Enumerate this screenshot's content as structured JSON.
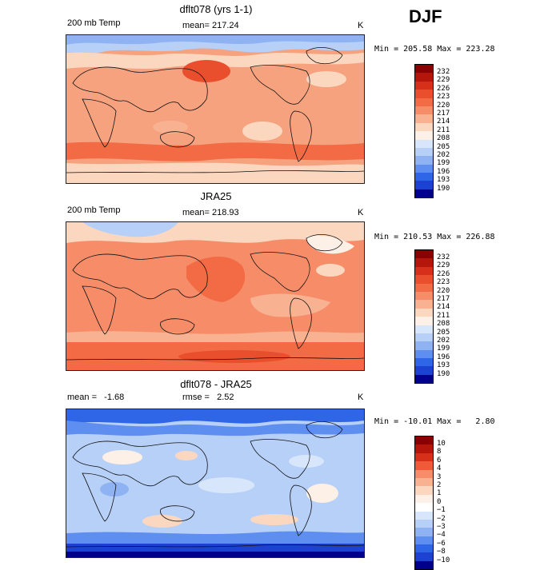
{
  "season": "DJF",
  "panels": [
    {
      "title": "dflt078 (yrs 1-1)",
      "left_label": "200 mb Temp",
      "center_label": "mean= 217.24",
      "right_label": "K",
      "minmax": "Min = 205.58 Max = 223.28",
      "colorbar_labels": [
        "232",
        "229",
        "226",
        "223",
        "220",
        "217",
        "214",
        "211",
        "208",
        "205",
        "202",
        "199",
        "196",
        "193",
        "190"
      ]
    },
    {
      "title": "JRA25",
      "left_label": "200 mb Temp",
      "center_label": "mean= 218.93",
      "right_label": "K",
      "minmax": "Min = 210.53 Max = 226.88",
      "colorbar_labels": [
        "232",
        "229",
        "226",
        "223",
        "220",
        "217",
        "214",
        "211",
        "208",
        "205",
        "202",
        "199",
        "196",
        "193",
        "190"
      ]
    },
    {
      "title": "dflt078 - JRA25",
      "left_label": "mean =   -1.68",
      "center_label": "rmse =   2.52",
      "right_label": "K",
      "minmax": "Min = -10.01 Max =   2.80",
      "colorbar_labels": [
        "10",
        "8",
        "6",
        "4",
        "3",
        "2",
        "1",
        "0",
        "−1",
        "−2",
        "−3",
        "−4",
        "−6",
        "−8",
        "−10"
      ]
    }
  ],
  "colors": {
    "abs_scale": [
      "#8b0000",
      "#b5160b",
      "#d6301a",
      "#e94f2d",
      "#f36b45",
      "#f68d68",
      "#f9b291",
      "#fcd7c0",
      "#fdf0e6",
      "#d7e6fb",
      "#b7d0f8",
      "#8fb2f3",
      "#5d8ef0",
      "#2f66e8",
      "#1d41d1",
      "#00008b"
    ],
    "diff_scale": [
      "#8b0000",
      "#b5160b",
      "#d6301a",
      "#ef5a38",
      "#f68d68",
      "#f9b291",
      "#fcd7c0",
      "#fdf0e6",
      "#ffffff",
      "#d7e6fb",
      "#b7d0f8",
      "#8fb2f3",
      "#5d8ef0",
      "#2f66e8",
      "#1d41d1",
      "#00008b"
    ]
  }
}
